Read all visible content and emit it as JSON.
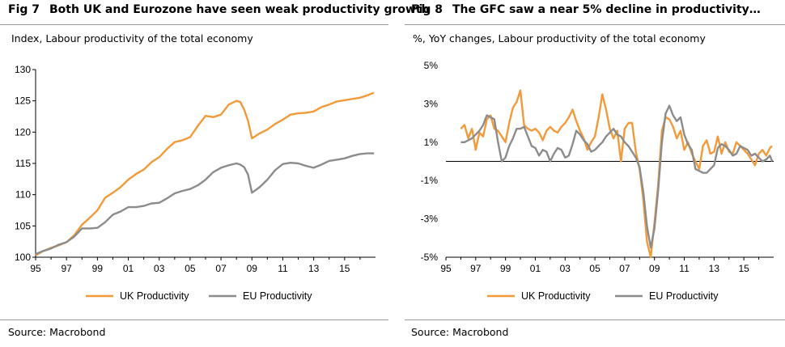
{
  "colors": {
    "uk": "#F29A3A",
    "eu": "#8C8C8C",
    "rule": "#999999"
  },
  "fig7": {
    "number": "Fig 7",
    "title": "Both UK and Eurozone have seen weak productivity growth",
    "subtitle": "Index, Labour productivity of the total economy",
    "source": "Source: Macrobond",
    "chart_data": {
      "type": "line",
      "xlim": [
        1995,
        2017
      ],
      "ylim": [
        100,
        130
      ],
      "yticks": [
        100,
        105,
        110,
        115,
        120,
        125,
        130
      ],
      "ytick_labels": [
        "100",
        "105",
        "110",
        "115",
        "120",
        "125",
        "130"
      ],
      "xtick_labels": [
        "95",
        "97",
        "99",
        "01",
        "03",
        "05",
        "07",
        "09",
        "11",
        "13",
        "15"
      ],
      "legend_position": "bottom",
      "grid": false,
      "series": [
        {
          "name": "UK Productivity",
          "color_key": "uk",
          "x": [
            1995,
            1995.5,
            1996,
            1996.5,
            1997,
            1997.5,
            1998,
            1998.5,
            1999,
            1999.5,
            2000,
            2000.5,
            2001,
            2001.5,
            2002,
            2002.5,
            2003,
            2003.5,
            2004,
            2004.5,
            2005,
            2005.5,
            2006,
            2006.5,
            2007,
            2007.5,
            2008,
            2008.25,
            2008.5,
            2008.75,
            2009,
            2009.5,
            2010,
            2010.5,
            2011,
            2011.5,
            2012,
            2012.5,
            2013,
            2013.5,
            2014,
            2014.5,
            2015,
            2015.5,
            2016,
            2016.5,
            2016.9
          ],
          "values": [
            100.3,
            101.0,
            101.5,
            101.9,
            102.4,
            103.5,
            105.2,
            106.3,
            107.5,
            109.5,
            110.3,
            111.2,
            112.4,
            113.3,
            114.0,
            115.2,
            116.0,
            117.3,
            118.4,
            118.7,
            119.2,
            121.0,
            122.6,
            122.4,
            122.8,
            124.4,
            125.0,
            124.8,
            123.6,
            121.8,
            119.0,
            119.8,
            120.4,
            121.3,
            122.0,
            122.8,
            123.0,
            123.1,
            123.3,
            124.0,
            124.4,
            124.9,
            125.1,
            125.3,
            125.5,
            125.9,
            126.3
          ]
        },
        {
          "name": "EU Productivity",
          "color_key": "eu",
          "x": [
            1995,
            1995.5,
            1996,
            1996.5,
            1997,
            1997.5,
            1998,
            1998.5,
            1999,
            1999.5,
            2000,
            2000.5,
            2001,
            2001.5,
            2002,
            2002.5,
            2003,
            2003.5,
            2004,
            2004.5,
            2005,
            2005.5,
            2006,
            2006.5,
            2007,
            2007.5,
            2008,
            2008.25,
            2008.5,
            2008.75,
            2009,
            2009.5,
            2010,
            2010.5,
            2011,
            2011.5,
            2012,
            2012.5,
            2013,
            2013.5,
            2014,
            2014.5,
            2015,
            2015.5,
            2016,
            2016.5,
            2016.9
          ],
          "values": [
            100.5,
            101.0,
            101.4,
            102.0,
            102.4,
            103.3,
            104.6,
            104.6,
            104.7,
            105.6,
            106.8,
            107.3,
            108.0,
            108.0,
            108.2,
            108.6,
            108.7,
            109.4,
            110.2,
            110.6,
            110.9,
            111.5,
            112.4,
            113.6,
            114.3,
            114.7,
            115.0,
            114.8,
            114.4,
            113.2,
            110.3,
            111.2,
            112.4,
            113.9,
            114.9,
            115.1,
            115.0,
            114.6,
            114.3,
            114.8,
            115.4,
            115.6,
            115.8,
            116.2,
            116.5,
            116.6,
            116.6
          ]
        }
      ]
    }
  },
  "fig8": {
    "number": "Fig 8",
    "title": "The GFC saw a near 5% decline in productivity…",
    "subtitle": "%, YoY changes, Labour productivity of the total economy",
    "source": "Source: Macrobond",
    "chart_data": {
      "type": "line",
      "xlim": [
        1995,
        2017
      ],
      "ylim": [
        -5,
        5
      ],
      "yticks": [
        -5,
        -3,
        -1,
        1,
        3,
        5
      ],
      "ytick_labels": [
        "-5%",
        "-3%",
        "-1%",
        "1%",
        "3%",
        "5%"
      ],
      "xtick_labels": [
        "95",
        "97",
        "99",
        "01",
        "03",
        "05",
        "07",
        "09",
        "11",
        "13",
        "15"
      ],
      "legend_position": "bottom",
      "grid": false,
      "zero_line": true,
      "series": [
        {
          "name": "UK Productivity",
          "color_key": "uk",
          "x": [
            1996,
            1996.25,
            1996.5,
            1996.75,
            1997,
            1997.25,
            1997.5,
            1997.75,
            1998,
            1998.25,
            1998.5,
            1998.75,
            1999,
            1999.25,
            1999.5,
            1999.75,
            2000,
            2000.25,
            2000.5,
            2000.75,
            2001,
            2001.25,
            2001.5,
            2001.75,
            2002,
            2002.25,
            2002.5,
            2002.75,
            2003,
            2003.25,
            2003.5,
            2003.75,
            2004,
            2004.25,
            2004.5,
            2004.75,
            2005,
            2005.25,
            2005.5,
            2005.75,
            2006,
            2006.25,
            2006.5,
            2006.75,
            2007,
            2007.25,
            2007.5,
            2007.75,
            2008,
            2008.25,
            2008.5,
            2008.75,
            2009,
            2009.25,
            2009.5,
            2009.75,
            2010,
            2010.25,
            2010.5,
            2010.75,
            2011,
            2011.25,
            2011.5,
            2011.75,
            2012,
            2012.25,
            2012.5,
            2012.75,
            2013,
            2013.25,
            2013.5,
            2013.75,
            2014,
            2014.25,
            2014.5,
            2014.75,
            2015,
            2015.25,
            2015.5,
            2015.75,
            2016,
            2016.25,
            2016.5,
            2016.75,
            2016.9
          ],
          "values": [
            1.7,
            1.9,
            1.2,
            1.7,
            0.6,
            1.5,
            1.3,
            2.2,
            2.4,
            1.7,
            1.6,
            1.3,
            1.0,
            2.0,
            2.8,
            3.1,
            3.7,
            1.9,
            1.7,
            1.6,
            1.7,
            1.5,
            1.1,
            1.6,
            1.8,
            1.6,
            1.5,
            1.8,
            2.0,
            2.3,
            2.7,
            2.1,
            1.6,
            1.2,
            0.6,
            1.0,
            1.3,
            2.3,
            3.5,
            2.7,
            1.7,
            1.2,
            1.6,
            0.0,
            1.7,
            2.0,
            2.0,
            0.5,
            -0.4,
            -2.0,
            -4.2,
            -5.0,
            -3.2,
            -1.2,
            1.6,
            2.3,
            2.2,
            1.8,
            1.2,
            1.6,
            0.6,
            1.0,
            0.4,
            0.0,
            -0.4,
            0.8,
            1.1,
            0.4,
            0.5,
            1.3,
            0.4,
            1.0,
            0.5,
            0.4,
            1.0,
            0.8,
            0.6,
            0.4,
            0.1,
            -0.2,
            0.4,
            0.6,
            0.3,
            0.7,
            0.8
          ]
        },
        {
          "name": "EU Productivity",
          "color_key": "eu",
          "x": [
            1996,
            1996.25,
            1996.5,
            1996.75,
            1997,
            1997.25,
            1997.5,
            1997.75,
            1998,
            1998.25,
            1998.5,
            1998.75,
            1999,
            1999.25,
            1999.5,
            1999.75,
            2000,
            2000.25,
            2000.5,
            2000.75,
            2001,
            2001.25,
            2001.5,
            2001.75,
            2002,
            2002.25,
            2002.5,
            2002.75,
            2003,
            2003.25,
            2003.5,
            2003.75,
            2004,
            2004.25,
            2004.5,
            2004.75,
            2005,
            2005.25,
            2005.5,
            2005.75,
            2006,
            2006.25,
            2006.5,
            2006.75,
            2007,
            2007.25,
            2007.5,
            2007.75,
            2008,
            2008.25,
            2008.5,
            2008.75,
            2009,
            2009.25,
            2009.5,
            2009.75,
            2010,
            2010.25,
            2010.5,
            2010.75,
            2011,
            2011.25,
            2011.5,
            2011.75,
            2012,
            2012.25,
            2012.5,
            2012.75,
            2013,
            2013.25,
            2013.5,
            2013.75,
            2014,
            2014.25,
            2014.5,
            2014.75,
            2015,
            2015.25,
            2015.5,
            2015.75,
            2016,
            2016.25,
            2016.5,
            2016.75,
            2016.9
          ],
          "values": [
            1.0,
            1.0,
            1.1,
            1.2,
            1.4,
            1.6,
            1.9,
            2.4,
            2.3,
            2.2,
            1.0,
            0.0,
            0.2,
            0.8,
            1.2,
            1.7,
            1.7,
            1.8,
            1.3,
            0.8,
            0.7,
            0.3,
            0.6,
            0.5,
            0.0,
            0.4,
            0.7,
            0.6,
            0.2,
            0.3,
            0.9,
            1.6,
            1.4,
            1.1,
            0.9,
            0.5,
            0.6,
            0.8,
            1.0,
            1.3,
            1.5,
            1.7,
            1.4,
            1.3,
            1.0,
            0.8,
            0.5,
            0.2,
            -0.3,
            -1.6,
            -3.4,
            -4.5,
            -3.5,
            -1.5,
            1.0,
            2.5,
            2.9,
            2.4,
            2.1,
            2.3,
            1.4,
            0.9,
            0.6,
            -0.4,
            -0.5,
            -0.6,
            -0.6,
            -0.4,
            -0.2,
            0.7,
            0.9,
            0.8,
            0.6,
            0.3,
            0.4,
            0.8,
            0.7,
            0.6,
            0.3,
            0.4,
            0.2,
            0.0,
            0.1,
            0.3,
            0.0
          ]
        }
      ]
    }
  }
}
